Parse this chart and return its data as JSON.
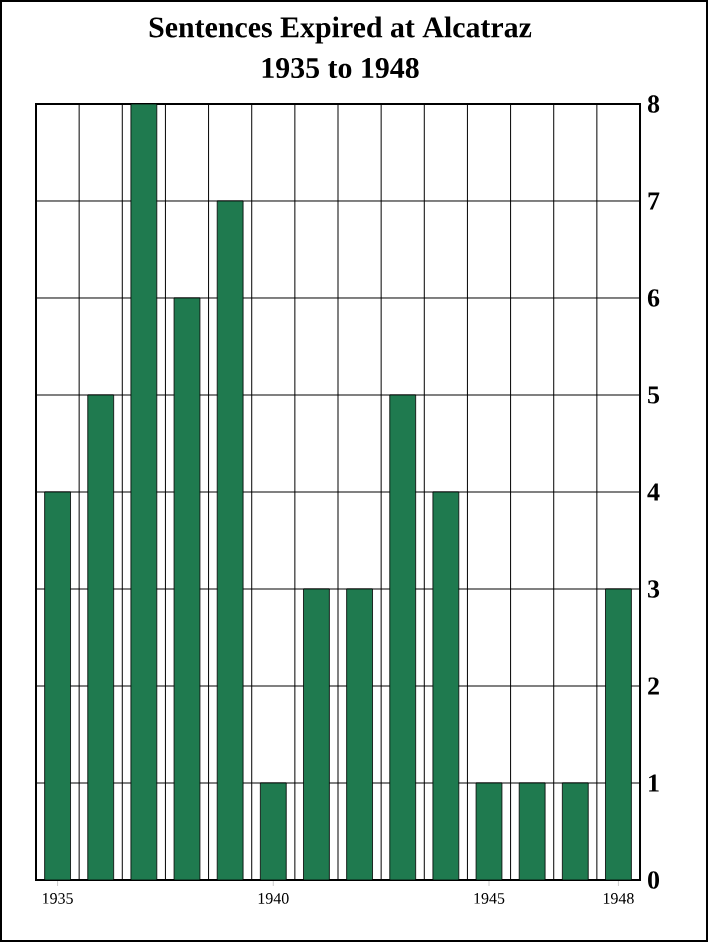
{
  "chart_data": {
    "type": "bar",
    "title": "Sentences Expired at Alcatraz",
    "subtitle": "1935 to 1948",
    "categories": [
      "1935",
      null,
      null,
      null,
      null,
      "1940",
      null,
      null,
      null,
      null,
      "1945",
      null,
      null,
      "1948"
    ],
    "values": [
      4,
      5,
      8,
      6,
      7,
      1,
      3,
      3,
      5,
      4,
      1,
      1,
      1,
      3
    ],
    "color": "#1f7a4f",
    "ylim": [
      0,
      8
    ],
    "yticks": [
      0,
      1,
      2,
      3,
      4,
      5,
      6,
      7,
      8
    ],
    "grid": true
  }
}
